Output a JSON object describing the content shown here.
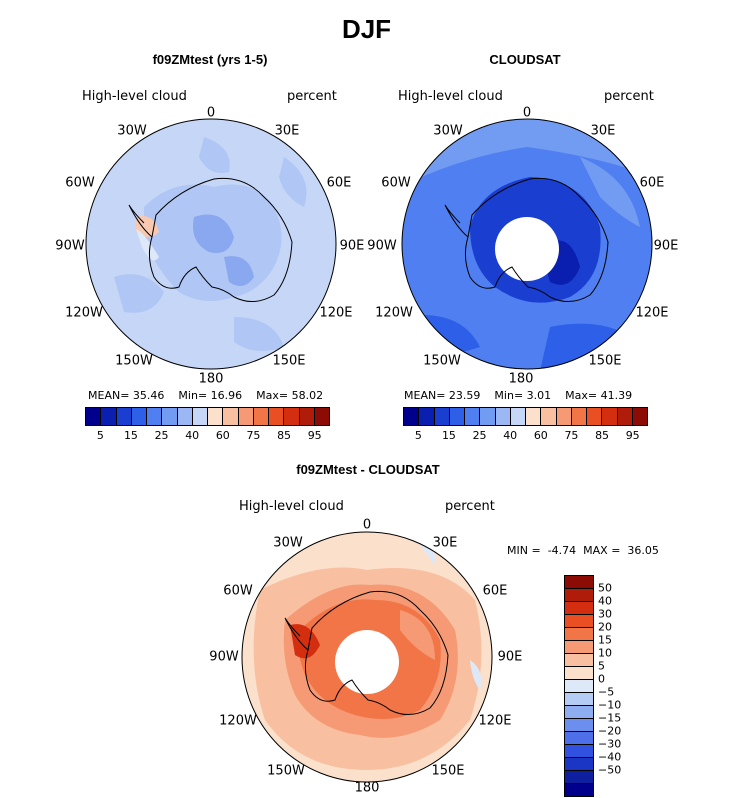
{
  "figure": {
    "title": "DJF"
  },
  "panels": [
    {
      "id": "model",
      "title": "f09ZMtest (yrs 1-5)",
      "left_label": "High-level cloud",
      "right_label": "percent",
      "stats": {
        "mean_label": "MEAN=",
        "mean": "35.46",
        "min_label": "Min=",
        "min": "16.96",
        "max_label": "Max=",
        "max": "58.02"
      }
    },
    {
      "id": "obs",
      "title": "CLOUDSAT",
      "left_label": "High-level cloud",
      "right_label": "percent",
      "stats": {
        "mean_label": "MEAN=",
        "mean": "23.59",
        "min_label": "Min=",
        "min": "3.01",
        "max_label": "Max=",
        "max": "41.39"
      }
    },
    {
      "id": "diff",
      "title": "f09ZMtest - CLOUDSAT",
      "left_label": "High-level cloud",
      "right_label": "percent",
      "stats": {
        "min_label": "MIN =",
        "min": "-4.74",
        "max_label": "MAX =",
        "max": "36.05"
      }
    }
  ],
  "longitude_labels": [
    "0",
    "30E",
    "60E",
    "90E",
    "120E",
    "150E",
    "180",
    "150W",
    "120W",
    "90W",
    "60W",
    "30W"
  ],
  "colorbar_abs": {
    "colors": [
      "#00008c",
      "#0a1fb0",
      "#1a3fd0",
      "#2d5fe8",
      "#4f7ff0",
      "#729bf2",
      "#9bb8f5",
      "#c6d6f7",
      "#fbe0cc",
      "#f8c0a0",
      "#f59a75",
      "#f27548",
      "#ea4f24",
      "#d42e10",
      "#b01c0a",
      "#8c0b05"
    ],
    "ticks": [
      "5",
      "15",
      "25",
      "40",
      "60",
      "75",
      "85",
      "95"
    ]
  },
  "colorbar_diff": {
    "colors": [
      "#8c0b05",
      "#b01c0a",
      "#d42e10",
      "#ea4f24",
      "#f27548",
      "#f59a75",
      "#f8c0a0",
      "#fbe0cc",
      "#dde8f8",
      "#b5ccf4",
      "#8fadf1",
      "#6c8eee",
      "#4d70ea",
      "#3152e0",
      "#1b35c4",
      "#0e1fa0",
      "#00008c"
    ],
    "ticks": [
      "50",
      "40",
      "30",
      "20",
      "15",
      "10",
      "5",
      "0",
      "−5",
      "−10",
      "−15",
      "−20",
      "−30",
      "−40",
      "−50"
    ]
  },
  "chart_data": [
    {
      "type": "heatmap",
      "projection": "south-polar-stereographic",
      "title": "f09ZMtest (yrs 1-5)",
      "variable": "High-level cloud",
      "units": "percent",
      "season": "DJF",
      "mean": 35.46,
      "min": 16.96,
      "max": 58.02,
      "levels": [
        5,
        10,
        15,
        20,
        25,
        30,
        40,
        50,
        60,
        70,
        75,
        80,
        85,
        90,
        95
      ],
      "pattern": "mostly 25-40% over ocean; 30-40% patches over East Antarctica interior; light (40-60) near Antarctic Peninsula"
    },
    {
      "type": "heatmap",
      "projection": "south-polar-stereographic",
      "title": "CLOUDSAT",
      "variable": "High-level cloud",
      "units": "percent",
      "season": "DJF",
      "mean": 23.59,
      "min": 3.01,
      "max": 41.39,
      "levels": [
        5,
        10,
        15,
        20,
        25,
        30,
        40,
        50,
        60,
        70,
        75,
        80,
        85,
        90,
        95
      ],
      "pattern": "15-30% over ocean; minimum 5-10% over East Antarctic plateau; missing data poleward of ~82S"
    },
    {
      "type": "heatmap",
      "projection": "south-polar-stereographic",
      "title": "f09ZMtest - CLOUDSAT",
      "variable": "High-level cloud",
      "units": "percent",
      "season": "DJF",
      "min": -4.74,
      "max": 36.05,
      "levels": [
        -50,
        -40,
        -30,
        -20,
        -15,
        -10,
        -5,
        0,
        5,
        10,
        15,
        20,
        30,
        40,
        50
      ],
      "pattern": "positive bias 10-20 around the Antarctic coast and interior, up to 20-30 near West Antarctica; 0-10 over ocean"
    }
  ]
}
